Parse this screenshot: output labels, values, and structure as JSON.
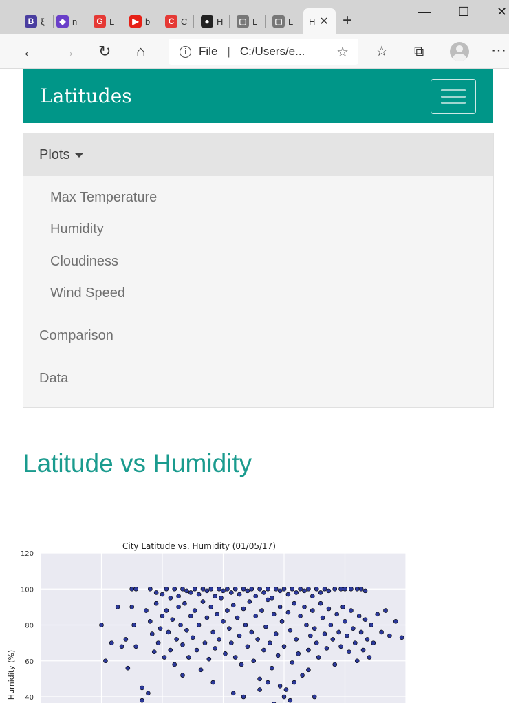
{
  "browser": {
    "tabs": [
      {
        "letter": "B",
        "color": "#4a3ea0",
        "text": "ξ"
      },
      {
        "letter": "◆",
        "color": "#6a3fc9",
        "text": "n"
      },
      {
        "letter": "G",
        "color": "#e53935",
        "text": "L"
      },
      {
        "letter": "▶",
        "color": "#e62117",
        "text": "b"
      },
      {
        "letter": "C",
        "color": "#e53935",
        "text": "C"
      },
      {
        "letter": "●",
        "color": "#222222",
        "text": "H"
      },
      {
        "letter": "▢",
        "color": "#777777",
        "text": "L"
      },
      {
        "letter": "▢",
        "color": "#777777",
        "text": "L"
      }
    ],
    "active_tab_text": "H",
    "address_scheme": "File",
    "address_url": "C:/Users/e..."
  },
  "navbar": {
    "brand": "Latitudes"
  },
  "menu": {
    "plots_label": "Plots",
    "plots_items": [
      "Max Temperature",
      "Humidity",
      "Cloudiness",
      "Wind Speed"
    ],
    "items": [
      "Comparison",
      "Data"
    ]
  },
  "main": {
    "heading": "Latitude vs Humidity"
  },
  "chart_data": {
    "type": "scatter",
    "title": "City Latitude vs. Humidity (01/05/17)",
    "xlabel": "",
    "ylabel": "Humidity (%)",
    "ylim": [
      0,
      120
    ],
    "xlim": [
      -90,
      90
    ],
    "yticks": [
      40,
      60,
      80,
      100,
      120
    ],
    "grid": true,
    "marker_color": "#0a1a8c",
    "background_color": "#eaeaf2",
    "points": [
      [
        -45,
        100
      ],
      [
        -43,
        100
      ],
      [
        -36,
        100
      ],
      [
        -33,
        98
      ],
      [
        -30,
        97
      ],
      [
        -28,
        100
      ],
      [
        -26,
        95
      ],
      [
        -24,
        100
      ],
      [
        -22,
        96
      ],
      [
        -20,
        100
      ],
      [
        -18,
        99
      ],
      [
        -16,
        98
      ],
      [
        -14,
        100
      ],
      [
        -12,
        97
      ],
      [
        -10,
        100
      ],
      [
        -8,
        99
      ],
      [
        -6,
        100
      ],
      [
        -4,
        96
      ],
      [
        -2,
        100
      ],
      [
        0,
        99
      ],
      [
        2,
        100
      ],
      [
        4,
        98
      ],
      [
        6,
        100
      ],
      [
        8,
        97
      ],
      [
        10,
        100
      ],
      [
        12,
        99
      ],
      [
        14,
        100
      ],
      [
        16,
        96
      ],
      [
        18,
        100
      ],
      [
        20,
        98
      ],
      [
        22,
        100
      ],
      [
        24,
        95
      ],
      [
        26,
        100
      ],
      [
        28,
        99
      ],
      [
        30,
        100
      ],
      [
        32,
        97
      ],
      [
        34,
        100
      ],
      [
        36,
        98
      ],
      [
        38,
        100
      ],
      [
        40,
        99
      ],
      [
        42,
        100
      ],
      [
        44,
        96
      ],
      [
        46,
        100
      ],
      [
        48,
        98
      ],
      [
        50,
        100
      ],
      [
        52,
        99
      ],
      [
        55,
        100
      ],
      [
        58,
        100
      ],
      [
        60,
        100
      ],
      [
        63,
        100
      ],
      [
        66,
        100
      ],
      [
        68,
        100
      ],
      [
        70,
        99
      ],
      [
        -60,
        80
      ],
      [
        -58,
        60
      ],
      [
        -55,
        70
      ],
      [
        -52,
        90
      ],
      [
        -50,
        68
      ],
      [
        -48,
        72
      ],
      [
        -47,
        56
      ],
      [
        -45,
        90
      ],
      [
        -44,
        80
      ],
      [
        -43,
        68
      ],
      [
        -40,
        45
      ],
      [
        -38,
        88
      ],
      [
        -36,
        82
      ],
      [
        -35,
        75
      ],
      [
        -34,
        65
      ],
      [
        -33,
        92
      ],
      [
        -32,
        70
      ],
      [
        -31,
        78
      ],
      [
        -30,
        85
      ],
      [
        -29,
        62
      ],
      [
        -28,
        88
      ],
      [
        -27,
        76
      ],
      [
        -26,
        66
      ],
      [
        -25,
        83
      ],
      [
        -24,
        58
      ],
      [
        -23,
        72
      ],
      [
        -22,
        90
      ],
      [
        -21,
        80
      ],
      [
        -20,
        69
      ],
      [
        -19,
        92
      ],
      [
        -18,
        77
      ],
      [
        -17,
        62
      ],
      [
        -16,
        85
      ],
      [
        -15,
        73
      ],
      [
        -14,
        88
      ],
      [
        -13,
        66
      ],
      [
        -12,
        80
      ],
      [
        -11,
        55
      ],
      [
        -10,
        93
      ],
      [
        -9,
        70
      ],
      [
        -8,
        84
      ],
      [
        -7,
        61
      ],
      [
        -6,
        90
      ],
      [
        -5,
        76
      ],
      [
        -4,
        67
      ],
      [
        -3,
        86
      ],
      [
        -2,
        72
      ],
      [
        -1,
        95
      ],
      [
        0,
        82
      ],
      [
        1,
        64
      ],
      [
        2,
        88
      ],
      [
        3,
        78
      ],
      [
        4,
        70
      ],
      [
        5,
        91
      ],
      [
        6,
        62
      ],
      [
        7,
        84
      ],
      [
        8,
        74
      ],
      [
        9,
        58
      ],
      [
        10,
        89
      ],
      [
        11,
        80
      ],
      [
        12,
        68
      ],
      [
        13,
        93
      ],
      [
        14,
        76
      ],
      [
        15,
        60
      ],
      [
        16,
        85
      ],
      [
        17,
        72
      ],
      [
        18,
        50
      ],
      [
        19,
        88
      ],
      [
        20,
        66
      ],
      [
        21,
        79
      ],
      [
        22,
        94
      ],
      [
        23,
        70
      ],
      [
        24,
        56
      ],
      [
        25,
        86
      ],
      [
        26,
        75
      ],
      [
        27,
        63
      ],
      [
        28,
        90
      ],
      [
        29,
        82
      ],
      [
        30,
        68
      ],
      [
        31,
        44
      ],
      [
        32,
        87
      ],
      [
        33,
        77
      ],
      [
        34,
        59
      ],
      [
        35,
        92
      ],
      [
        36,
        72
      ],
      [
        37,
        64
      ],
      [
        38,
        85
      ],
      [
        39,
        52
      ],
      [
        40,
        90
      ],
      [
        41,
        80
      ],
      [
        42,
        66
      ],
      [
        43,
        74
      ],
      [
        44,
        88
      ],
      [
        45,
        78
      ],
      [
        46,
        70
      ],
      [
        47,
        62
      ],
      [
        48,
        92
      ],
      [
        49,
        84
      ],
      [
        50,
        75
      ],
      [
        51,
        67
      ],
      [
        52,
        89
      ],
      [
        53,
        80
      ],
      [
        54,
        72
      ],
      [
        55,
        58
      ],
      [
        56,
        86
      ],
      [
        57,
        76
      ],
      [
        58,
        68
      ],
      [
        59,
        90
      ],
      [
        60,
        82
      ],
      [
        61,
        74
      ],
      [
        62,
        65
      ],
      [
        63,
        88
      ],
      [
        64,
        78
      ],
      [
        65,
        70
      ],
      [
        66,
        60
      ],
      [
        67,
        85
      ],
      [
        68,
        76
      ],
      [
        69,
        66
      ],
      [
        70,
        83
      ],
      [
        71,
        72
      ],
      [
        72,
        62
      ],
      [
        73,
        80
      ],
      [
        74,
        70
      ],
      [
        76,
        86
      ],
      [
        78,
        76
      ],
      [
        80,
        88
      ],
      [
        82,
        74
      ],
      [
        85,
        82
      ],
      [
        88,
        73
      ],
      [
        -40,
        38
      ],
      [
        -37,
        42
      ],
      [
        -20,
        52
      ],
      [
        -5,
        48
      ],
      [
        5,
        42
      ],
      [
        10,
        40
      ],
      [
        18,
        44
      ],
      [
        22,
        48
      ],
      [
        25,
        36
      ],
      [
        28,
        46
      ],
      [
        30,
        40
      ],
      [
        33,
        38
      ],
      [
        35,
        48
      ],
      [
        42,
        55
      ],
      [
        45,
        40
      ]
    ]
  }
}
